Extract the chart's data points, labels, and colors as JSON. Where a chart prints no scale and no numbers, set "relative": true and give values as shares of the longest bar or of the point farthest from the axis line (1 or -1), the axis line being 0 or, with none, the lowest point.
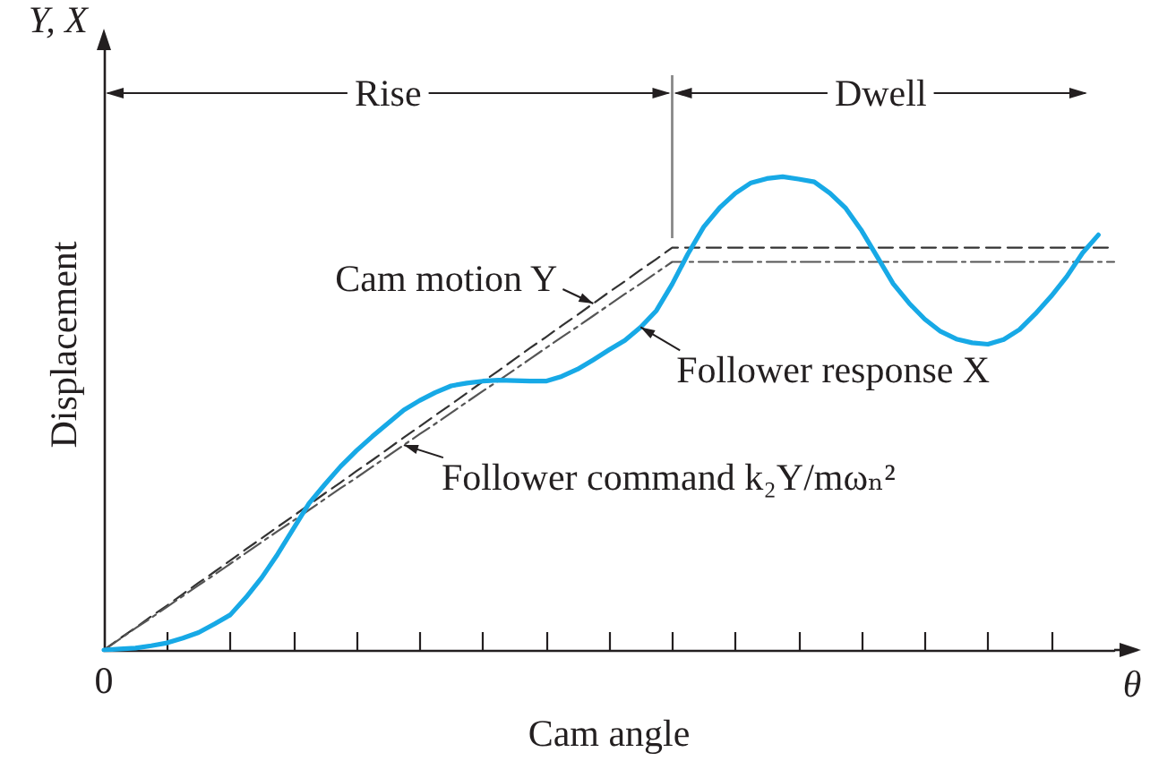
{
  "chart_data": {
    "type": "line",
    "relative": true,
    "xlabel": "Cam angle",
    "ylabel": "Displacement",
    "annotations": [
      "Y, X",
      "0",
      "θ",
      "Rise",
      "Dwell"
    ],
    "legend": false,
    "marker": "none",
    "categories": [
      null,
      null,
      null,
      null,
      null,
      null,
      null,
      null,
      null,
      null,
      null,
      null,
      null,
      null,
      null,
      null,
      null,
      null,
      null,
      null,
      null,
      null,
      null,
      null,
      null,
      null,
      null,
      null,
      null,
      null,
      null,
      null,
      null,
      null,
      null,
      null,
      null,
      null,
      null,
      null,
      null,
      null,
      null,
      null,
      null,
      null,
      null,
      null,
      null,
      null,
      null,
      null,
      null,
      null,
      null,
      null,
      null,
      null,
      null,
      null,
      null,
      null,
      null,
      null,
      null
    ],
    "series": [
      {
        "name": "Cam motion Y",
        "color": "#333333",
        "line_style": "dashed",
        "values": [
          0,
          0.024,
          0.047,
          0.071,
          0.094,
          0.118,
          0.142,
          0.165,
          0.189,
          0.213,
          0.236,
          0.26,
          0.283,
          0.307,
          0.331,
          0.354,
          0.378,
          0.401,
          0.425,
          0.449,
          0.472,
          0.496,
          0.519,
          0.543,
          0.567,
          0.59,
          0.614,
          0.638,
          0.661,
          0.685,
          0.708,
          0.732,
          0.756,
          0.779,
          0.803,
          0.826,
          0.85,
          0.85,
          0.85,
          0.85,
          0.85,
          0.85,
          0.85,
          0.85,
          0.85,
          0.85,
          0.85,
          0.85,
          0.85,
          0.85,
          0.85,
          0.85,
          0.85,
          0.85,
          0.85,
          0.85,
          0.85,
          0.85,
          0.85,
          0.85,
          0.85,
          0.85,
          0.85,
          0.85,
          0.85
        ]
      },
      {
        "name": "Follower command k₂Y/mωₙ²",
        "color": "#555555",
        "line_style": "dashdot",
        "values": [
          0,
          0.023,
          0.046,
          0.068,
          0.091,
          0.114,
          0.137,
          0.159,
          0.182,
          0.205,
          0.228,
          0.251,
          0.273,
          0.296,
          0.319,
          0.342,
          0.364,
          0.387,
          0.41,
          0.433,
          0.456,
          0.478,
          0.501,
          0.524,
          0.547,
          0.569,
          0.592,
          0.615,
          0.638,
          0.661,
          0.683,
          0.706,
          0.729,
          0.752,
          0.774,
          0.797,
          0.82,
          0.82,
          0.82,
          0.82,
          0.82,
          0.82,
          0.82,
          0.82,
          0.82,
          0.82,
          0.82,
          0.82,
          0.82,
          0.82,
          0.82,
          0.82,
          0.82,
          0.82,
          0.82,
          0.82,
          0.82,
          0.82,
          0.82,
          0.82,
          0.82,
          0.82,
          0.82,
          0.82,
          0.82
        ]
      },
      {
        "name": "Follower response X",
        "color": "#17a9e6",
        "line_style": "solid",
        "values": [
          0,
          0.002,
          0.004,
          0.009,
          0.015,
          0.025,
          0.037,
          0.055,
          0.074,
          0.111,
          0.153,
          0.202,
          0.256,
          0.31,
          0.35,
          0.388,
          0.421,
          0.451,
          0.479,
          0.507,
          0.527,
          0.544,
          0.558,
          0.564,
          0.568,
          0.57,
          0.569,
          0.568,
          0.568,
          0.578,
          0.593,
          0.613,
          0.634,
          0.654,
          0.682,
          0.717,
          0.773,
          0.837,
          0.894,
          0.934,
          0.965,
          0.987,
          0.996,
          1,
          0.995,
          0.989,
          0.965,
          0.933,
          0.886,
          0.83,
          0.774,
          0.733,
          0.699,
          0.673,
          0.657,
          0.649,
          0.646,
          0.656,
          0.677,
          0.71,
          0.747,
          0.789,
          0.839,
          0.877,
          null
        ]
      }
    ]
  }
}
